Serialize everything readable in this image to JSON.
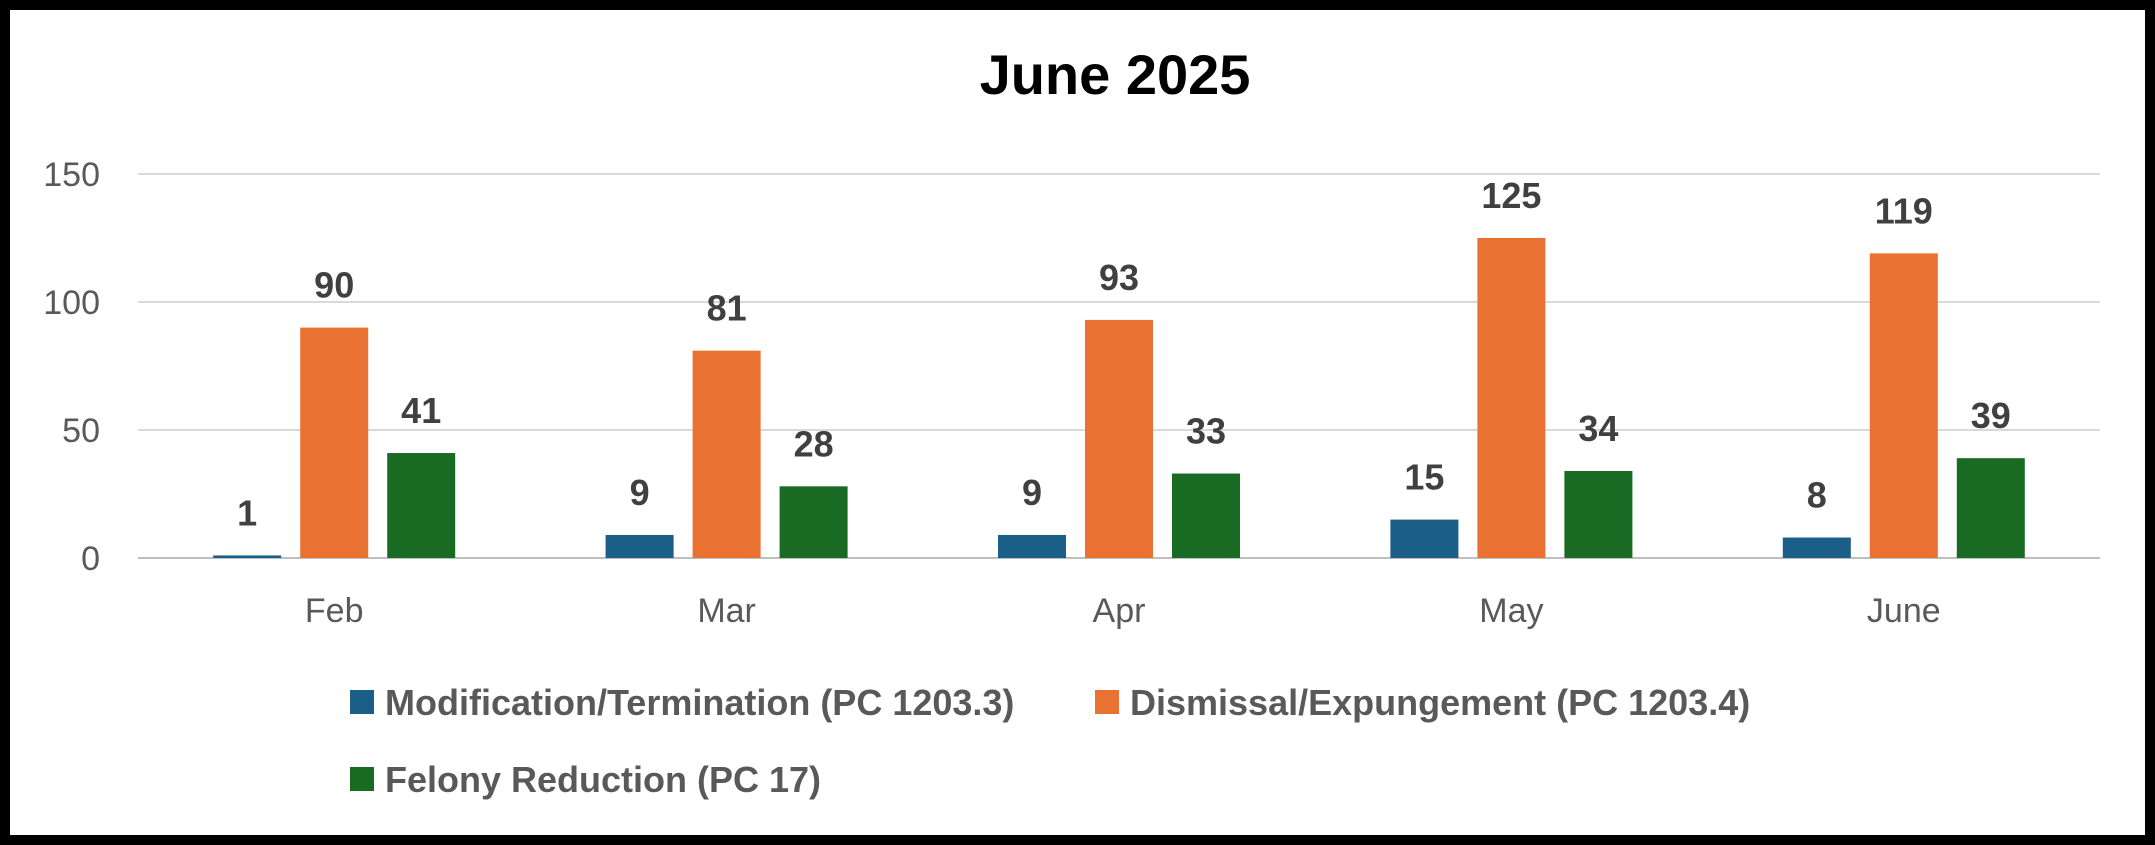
{
  "chart_data": {
    "type": "bar",
    "title": "June 2025",
    "xlabel": "",
    "ylabel": "",
    "categories": [
      "Feb",
      "Mar",
      "Apr",
      "May",
      "June"
    ],
    "ylim": [
      0,
      150
    ],
    "yticks": [
      0,
      50,
      100,
      150
    ],
    "grid": true,
    "legend_position": "bottom",
    "series": [
      {
        "name": "Modification/Termination (PC 1203.3)",
        "color": "#1b5e87",
        "values": [
          1,
          9,
          9,
          15,
          8
        ]
      },
      {
        "name": "Dismissal/Expungement (PC 1203.4)",
        "color": "#e97132",
        "values": [
          90,
          81,
          93,
          125,
          119
        ]
      },
      {
        "name": "Felony Reduction (PC 17)",
        "color": "#196b24",
        "values": [
          41,
          28,
          33,
          34,
          39
        ]
      }
    ]
  }
}
